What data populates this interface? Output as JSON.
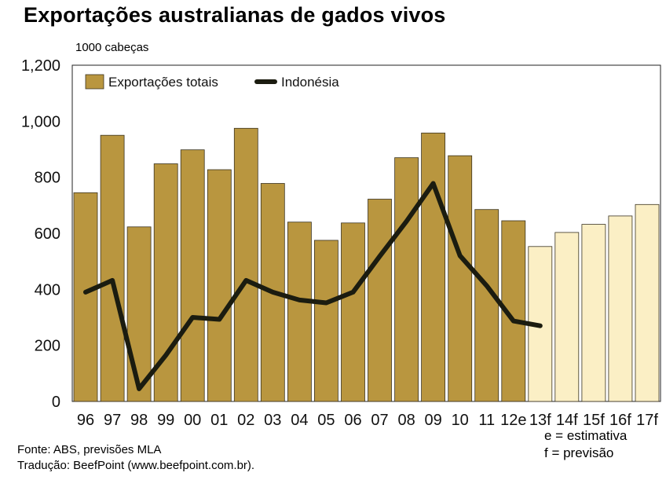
{
  "chart_data": {
    "type": "bar",
    "title": "Exportações australianas de gados vivos",
    "ylabel": "1000 cabeças",
    "xlabel": "",
    "ylim": [
      0,
      1200
    ],
    "yticks": [
      "0",
      "200",
      "400",
      "600",
      "800",
      "1,000",
      "1,200"
    ],
    "ytick_values": [
      0,
      200,
      400,
      600,
      800,
      1000,
      1200
    ],
    "categories": [
      "96",
      "97",
      "98",
      "99",
      "00",
      "01",
      "02",
      "03",
      "04",
      "05",
      "06",
      "07",
      "08",
      "09",
      "10",
      "11",
      "12e",
      "13f",
      "14f",
      "15f",
      "16f",
      "17f"
    ],
    "series": [
      {
        "name": "Exportações totais",
        "kind": "bar",
        "color": "#b9963f",
        "forecast_color": "#fbefc5",
        "values": [
          745,
          950,
          623,
          848,
          898,
          827,
          975,
          778,
          640,
          575,
          637,
          722,
          870,
          958,
          877,
          685,
          645,
          553,
          603,
          632,
          662,
          703
        ]
      },
      {
        "name": "Indonésia",
        "kind": "line",
        "color": "#1b1c10",
        "values": [
          390,
          432,
          45,
          165,
          300,
          293,
          432,
          390,
          362,
          352,
          390,
          518,
          643,
          778,
          520,
          413,
          287,
          270,
          null,
          null,
          null,
          null
        ]
      }
    ],
    "forecast_start_index": 17,
    "legend": {
      "position": "top-left",
      "items": [
        {
          "label": "Exportações totais",
          "symbol": "bar"
        },
        {
          "label": "Indonésia",
          "symbol": "line"
        }
      ]
    },
    "notes": [
      "e = estimativa",
      "f = previsão"
    ]
  },
  "source": {
    "line1": "Fonte: ABS, previsões MLA",
    "line2": "Tradução: BeefPoint (www.beefpoint.com.br)."
  }
}
